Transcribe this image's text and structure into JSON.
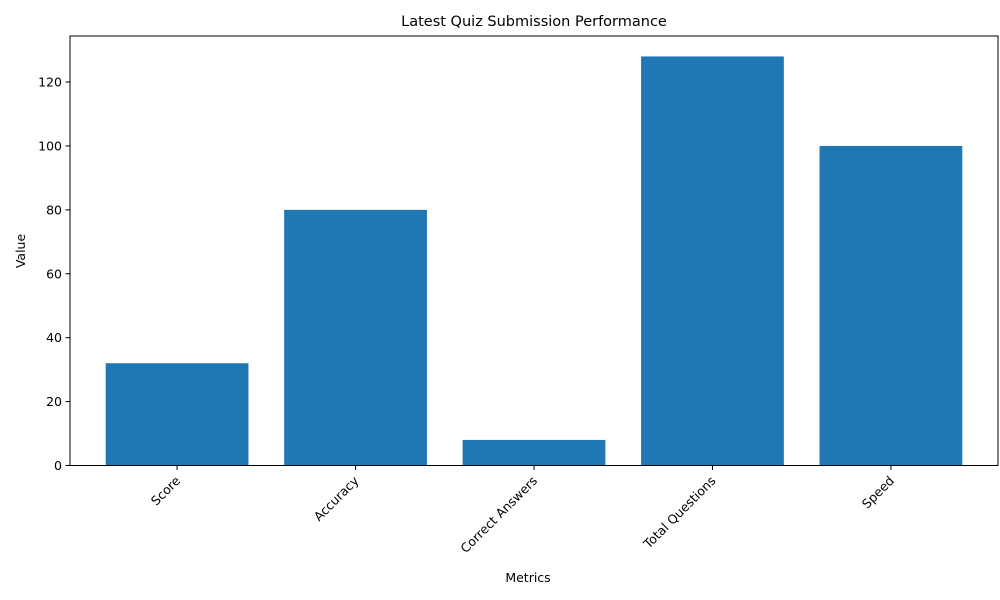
{
  "chart_data": {
    "type": "bar",
    "title": "Latest Quiz Submission Performance",
    "xlabel": "Metrics",
    "ylabel": "Value",
    "categories": [
      "Score",
      "Accuracy",
      "Correct Answers",
      "Total Questions",
      "Speed"
    ],
    "values": [
      32,
      80,
      8,
      128,
      100
    ],
    "ylim": [
      0,
      134.4
    ],
    "yticks": [
      0,
      20,
      40,
      60,
      80,
      100,
      120
    ],
    "bar_color": "#1f77b4",
    "grid": false,
    "legend": "none"
  }
}
